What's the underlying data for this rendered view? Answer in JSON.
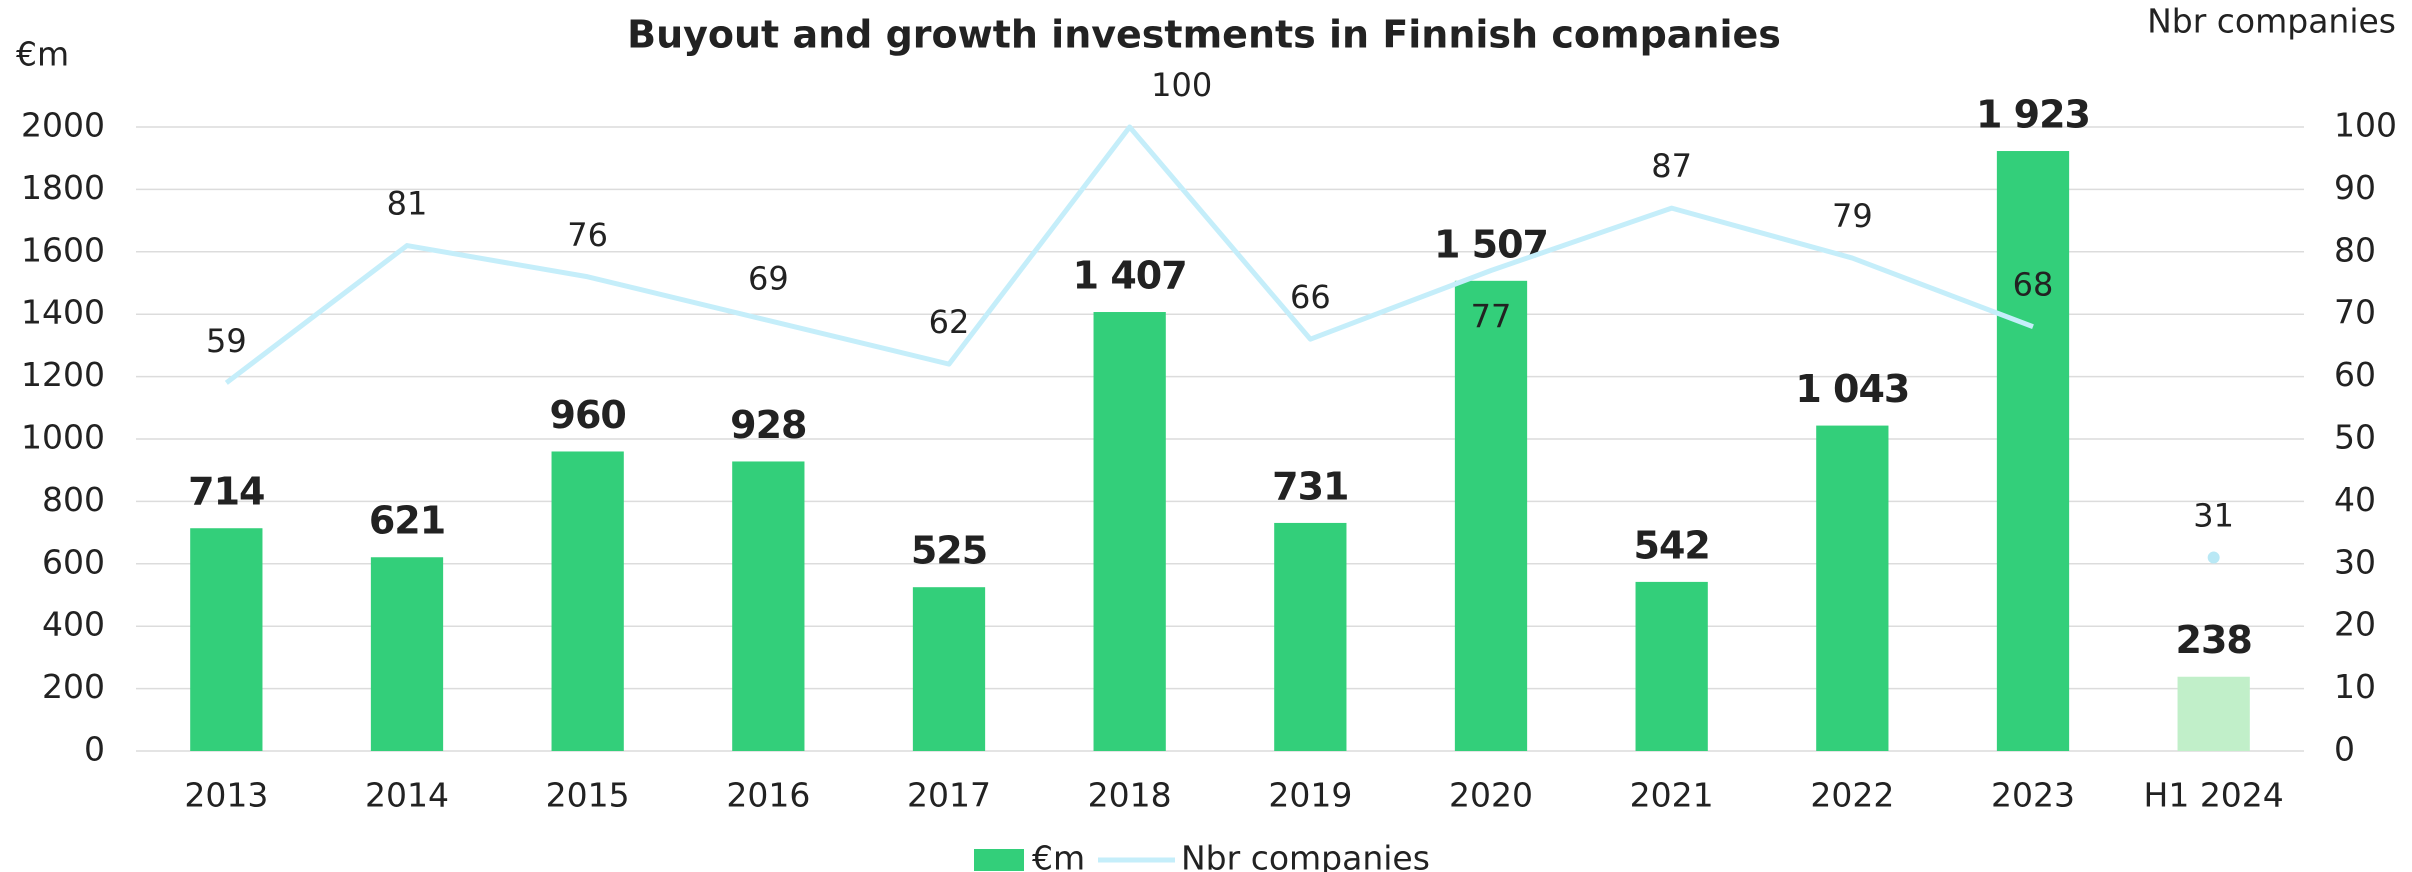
{
  "chart_data": {
    "type": "bar_line",
    "title": "Buyout and growth investments in Finnish companies",
    "y_label": "€m",
    "y2_label": "Nbr companies",
    "categories": [
      "2013",
      "2014",
      "2015",
      "2016",
      "2017",
      "2018",
      "2019",
      "2020",
      "2021",
      "2022",
      "2023",
      "H1 2024"
    ],
    "series": [
      {
        "name": "€m",
        "type": "bar",
        "color": "#33cf7a",
        "point_colors": [
          "#33cf7a",
          "#33cf7a",
          "#33cf7a",
          "#33cf7a",
          "#33cf7a",
          "#33cf7a",
          "#33cf7a",
          "#33cf7a",
          "#33cf7a",
          "#33cf7a",
          "#33cf7a",
          "#c1efc9"
        ],
        "values": [
          714,
          621,
          960,
          928,
          525,
          1407,
          731,
          1507,
          542,
          1043,
          1923,
          238
        ],
        "value_labels": [
          "714",
          "621",
          "960",
          "928",
          "525",
          "1 407",
          "731",
          "1 507",
          "542",
          "1 043",
          "1 923",
          "238"
        ]
      },
      {
        "name": "Nbr companies",
        "type": "line",
        "axis": "y2",
        "color": "#c5eefa",
        "isolated": [
          "H1 2024"
        ],
        "values": [
          59,
          81,
          76,
          69,
          62,
          100,
          66,
          77,
          87,
          79,
          68,
          31
        ]
      }
    ],
    "ylim": [
      0,
      2000
    ],
    "yticks": [
      0,
      200,
      400,
      600,
      800,
      1000,
      1200,
      1400,
      1600,
      1800,
      2000
    ],
    "y2lim": [
      0,
      100
    ],
    "y2ticks": [
      0,
      10,
      20,
      30,
      40,
      50,
      60,
      70,
      80,
      90,
      100
    ],
    "grid": true,
    "legend": "bottom"
  }
}
